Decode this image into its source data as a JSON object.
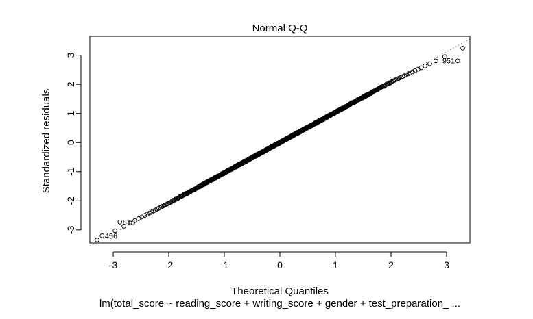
{
  "chart_data": {
    "type": "scatter",
    "title": "Normal Q-Q",
    "xlabel": "Theoretical Quantiles",
    "ylabel": "Standardized residuals",
    "subtitle": "lm(total_score ~ reading_score + writing_score + gender + test_preparation_ ...",
    "xlim": [
      -3.42,
      3.42
    ],
    "ylim": [
      -3.45,
      3.65
    ],
    "x_ticks": [
      -3,
      -2,
      -1,
      0,
      1,
      2,
      3
    ],
    "y_ticks": [
      -3,
      -2,
      -1,
      0,
      1,
      2,
      3
    ],
    "grid": false,
    "n_points": 1000,
    "reference_line": {
      "intercept": 0.0,
      "slope": 1.04,
      "style": "dotted"
    },
    "labeled_points": [
      {
        "label": "951",
        "x": 3.2,
        "y": 2.81
      },
      {
        "label": "818",
        "x": -2.88,
        "y": -2.73
      },
      {
        "label": "456",
        "x": -3.2,
        "y": -3.2
      }
    ],
    "colors": {
      "points": "#000000",
      "line": "#808080",
      "frame": "#000000"
    }
  }
}
